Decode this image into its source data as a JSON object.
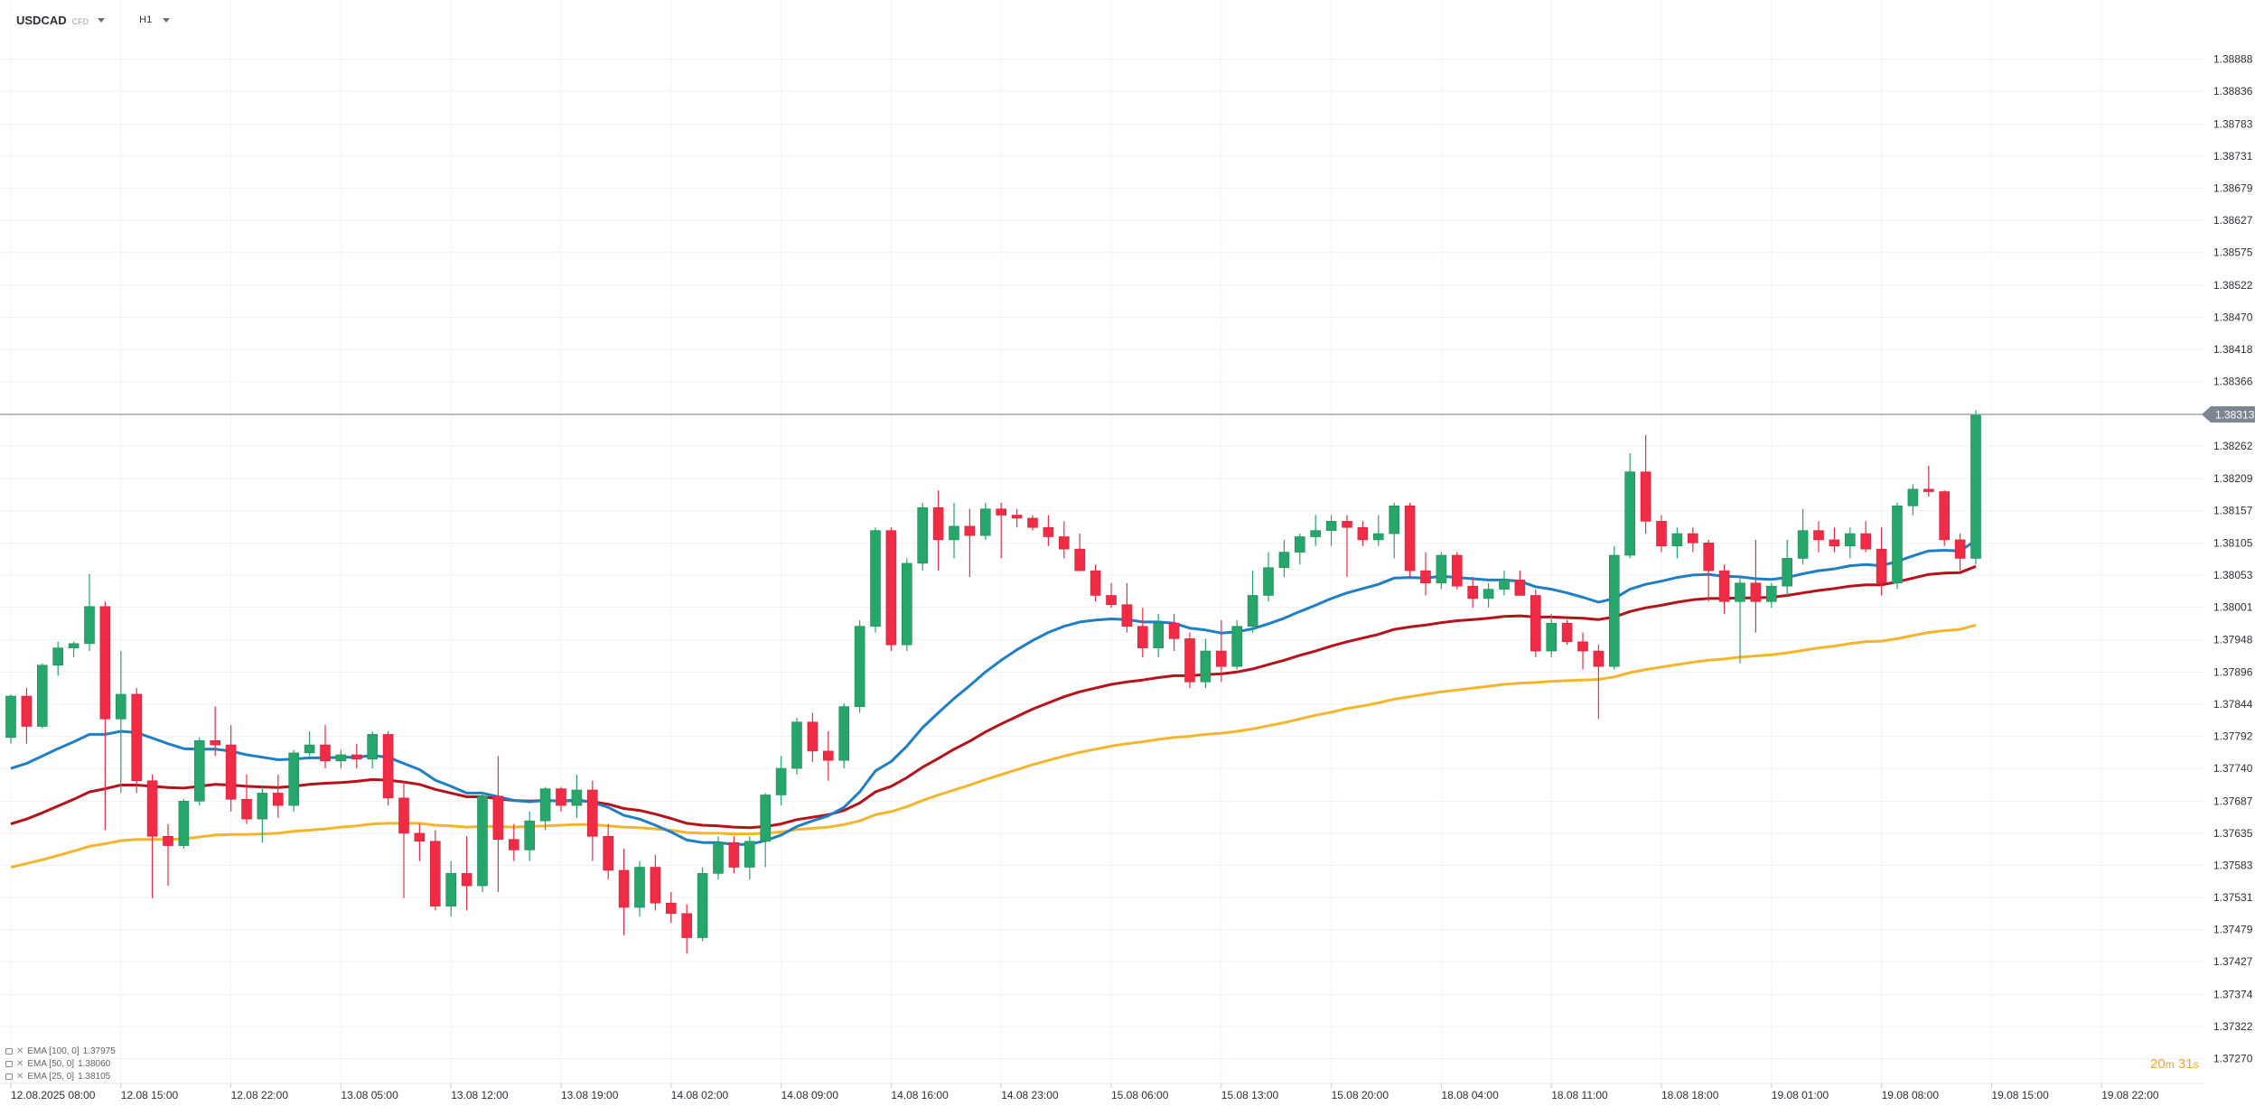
{
  "header": {
    "symbol": "USDCAD",
    "symbol_type": "CFD",
    "timeframe": "H1"
  },
  "legend": [
    {
      "label": "EMA [100, 0]",
      "value": "1.37975",
      "color": "#f5b52b"
    },
    {
      "label": "EMA [50, 0]",
      "value": "1.38060",
      "color": "#b5121b"
    },
    {
      "label": "EMA [25, 0]",
      "value": "1.38105",
      "color": "#1f7fc4"
    }
  ],
  "countdown": {
    "minutes": "20",
    "m_unit": "m",
    "seconds": "31",
    "s_unit": "s"
  },
  "price_tag": "1.38313",
  "chart_data": {
    "type": "candlestick",
    "ylim": [
      1.3723,
      1.3894
    ],
    "y_ticks": [
      "1.38888",
      "1.38836",
      "1.38783",
      "1.38731",
      "1.38679",
      "1.38627",
      "1.38575",
      "1.38522",
      "1.38470",
      "1.38418",
      "1.38366",
      "1.38313",
      "1.38262",
      "1.38209",
      "1.38157",
      "1.38105",
      "1.38053",
      "1.38001",
      "1.37948",
      "1.37896",
      "1.37844",
      "1.37792",
      "1.37740",
      "1.37687",
      "1.37635",
      "1.37583",
      "1.37531",
      "1.37479",
      "1.37427",
      "1.37374",
      "1.37322",
      "1.37270"
    ],
    "x_ticks": [
      "12.08.2025  08:00",
      "12.08  15:00",
      "12.08  22:00",
      "13.08  05:00",
      "13.08  12:00",
      "13.08  19:00",
      "14.08  02:00",
      "14.08  09:00",
      "14.08  16:00",
      "14.08  23:00",
      "15.08  06:00",
      "15.08  13:00",
      "15.08  20:00",
      "18.08  04:00",
      "18.08  11:00",
      "18.08  18:00",
      "19.08  01:00",
      "19.08  08:00",
      "19.08  15:00",
      "19.08  22:00"
    ],
    "last_price": 1.38313,
    "colors": {
      "up": "#26a66b",
      "down": "#ef2b45",
      "ema100": "#f5b52b",
      "ema50": "#b5121b",
      "ema25": "#1f7fc4"
    },
    "candles": [
      [
        1.3779,
        1.3786,
        1.3778,
        1.37857
      ],
      [
        1.37857,
        1.3787,
        1.3778,
        1.37808
      ],
      [
        1.37808,
        1.3791,
        1.37805,
        1.37907
      ],
      [
        1.37907,
        1.37945,
        1.3789,
        1.37935
      ],
      [
        1.37935,
        1.37945,
        1.3792,
        1.37942
      ],
      [
        1.37942,
        1.38055,
        1.3793,
        1.38002
      ],
      [
        1.38002,
        1.3801,
        1.3764,
        1.3782
      ],
      [
        1.3782,
        1.3793,
        1.377,
        1.3786
      ],
      [
        1.3786,
        1.3787,
        1.377,
        1.3772
      ],
      [
        1.3772,
        1.3773,
        1.3753,
        1.3763
      ],
      [
        1.3763,
        1.3765,
        1.3755,
        1.37615
      ],
      [
        1.37615,
        1.3769,
        1.3761,
        1.37687
      ],
      [
        1.37687,
        1.3779,
        1.3768,
        1.37785
      ],
      [
        1.37785,
        1.3784,
        1.3776,
        1.37778
      ],
      [
        1.37778,
        1.3781,
        1.3767,
        1.3769
      ],
      [
        1.3769,
        1.3773,
        1.3765,
        1.37658
      ],
      [
        1.37658,
        1.3771,
        1.3762,
        1.377
      ],
      [
        1.377,
        1.3773,
        1.3766,
        1.3768
      ],
      [
        1.3768,
        1.3777,
        1.3767,
        1.37765
      ],
      [
        1.37765,
        1.378,
        1.3776,
        1.37778
      ],
      [
        1.37778,
        1.3781,
        1.3774,
        1.37752
      ],
      [
        1.37752,
        1.3777,
        1.3774,
        1.37762
      ],
      [
        1.37762,
        1.3778,
        1.3774,
        1.37755
      ],
      [
        1.37755,
        1.378,
        1.3774,
        1.37795
      ],
      [
        1.37795,
        1.378,
        1.3768,
        1.37692
      ],
      [
        1.37692,
        1.3772,
        1.3753,
        1.37635
      ],
      [
        1.37635,
        1.3765,
        1.3759,
        1.37622
      ],
      [
        1.37622,
        1.3764,
        1.3751,
        1.37517
      ],
      [
        1.37517,
        1.3759,
        1.375,
        1.3757
      ],
      [
        1.3757,
        1.3763,
        1.3751,
        1.3755
      ],
      [
        1.3755,
        1.377,
        1.3754,
        1.37695
      ],
      [
        1.37695,
        1.3776,
        1.3754,
        1.37625
      ],
      [
        1.37625,
        1.3765,
        1.3759,
        1.37608
      ],
      [
        1.37608,
        1.3767,
        1.3759,
        1.37655
      ],
      [
        1.37655,
        1.3771,
        1.3764,
        1.37707
      ],
      [
        1.37707,
        1.3771,
        1.3767,
        1.3768
      ],
      [
        1.3768,
        1.3773,
        1.3766,
        1.37705
      ],
      [
        1.37705,
        1.3772,
        1.3759,
        1.3763
      ],
      [
        1.3763,
        1.3765,
        1.3756,
        1.37575
      ],
      [
        1.37575,
        1.3761,
        1.3747,
        1.37515
      ],
      [
        1.37515,
        1.3759,
        1.375,
        1.3758
      ],
      [
        1.3758,
        1.376,
        1.3751,
        1.37522
      ],
      [
        1.37522,
        1.3754,
        1.3749,
        1.37505
      ],
      [
        1.37505,
        1.3752,
        1.3744,
        1.37466
      ],
      [
        1.37466,
        1.3758,
        1.3746,
        1.3757
      ],
      [
        1.3757,
        1.3763,
        1.3756,
        1.3762
      ],
      [
        1.3762,
        1.3763,
        1.3757,
        1.3758
      ],
      [
        1.3758,
        1.3763,
        1.3756,
        1.37622
      ],
      [
        1.37622,
        1.377,
        1.3758,
        1.37697
      ],
      [
        1.37697,
        1.3776,
        1.3768,
        1.3774
      ],
      [
        1.3774,
        1.37822,
        1.3773,
        1.37815
      ],
      [
        1.37815,
        1.3783,
        1.3775,
        1.37768
      ],
      [
        1.37768,
        1.378,
        1.3772,
        1.37753
      ],
      [
        1.37753,
        1.37845,
        1.3774,
        1.3784
      ],
      [
        1.3784,
        1.3798,
        1.3783,
        1.3797
      ],
      [
        1.3797,
        1.3813,
        1.3796,
        1.38125
      ],
      [
        1.38125,
        1.3813,
        1.3793,
        1.3794
      ],
      [
        1.3794,
        1.3808,
        1.3793,
        1.38072
      ],
      [
        1.38072,
        1.3817,
        1.3806,
        1.38162
      ],
      [
        1.38162,
        1.3819,
        1.3806,
        1.3811
      ],
      [
        1.3811,
        1.3817,
        1.3808,
        1.38132
      ],
      [
        1.38132,
        1.3816,
        1.3805,
        1.38117
      ],
      [
        1.38117,
        1.3817,
        1.3811,
        1.3816
      ],
      [
        1.3816,
        1.3817,
        1.3808,
        1.3815
      ],
      [
        1.3815,
        1.3816,
        1.3813,
        1.38145
      ],
      [
        1.38145,
        1.3815,
        1.38125,
        1.3813
      ],
      [
        1.3813,
        1.3815,
        1.381,
        1.38115
      ],
      [
        1.38115,
        1.3814,
        1.3808,
        1.38095
      ],
      [
        1.38095,
        1.3812,
        1.3806,
        1.3806
      ],
      [
        1.3806,
        1.3807,
        1.3801,
        1.3802
      ],
      [
        1.3802,
        1.3804,
        1.38,
        1.38005
      ],
      [
        1.38005,
        1.3804,
        1.3796,
        1.3797
      ],
      [
        1.3797,
        1.38,
        1.3792,
        1.37935
      ],
      [
        1.37935,
        1.3799,
        1.3792,
        1.37975
      ],
      [
        1.37975,
        1.3799,
        1.3793,
        1.3795
      ],
      [
        1.3795,
        1.3796,
        1.3787,
        1.3788
      ],
      [
        1.3788,
        1.3795,
        1.3787,
        1.3793
      ],
      [
        1.3793,
        1.3798,
        1.3788,
        1.37905
      ],
      [
        1.37905,
        1.3798,
        1.379,
        1.3797
      ],
      [
        1.3797,
        1.3806,
        1.3796,
        1.3802
      ],
      [
        1.3802,
        1.3809,
        1.3801,
        1.38065
      ],
      [
        1.38065,
        1.3811,
        1.3805,
        1.3809
      ],
      [
        1.3809,
        1.3812,
        1.3807,
        1.38115
      ],
      [
        1.38115,
        1.3815,
        1.381,
        1.38125
      ],
      [
        1.38125,
        1.3815,
        1.381,
        1.3814
      ],
      [
        1.3814,
        1.3815,
        1.3805,
        1.3813
      ],
      [
        1.3813,
        1.3814,
        1.381,
        1.3811
      ],
      [
        1.3811,
        1.3815,
        1.381,
        1.3812
      ],
      [
        1.3812,
        1.3817,
        1.3808,
        1.38165
      ],
      [
        1.38165,
        1.3817,
        1.3805,
        1.3806
      ],
      [
        1.3806,
        1.3809,
        1.3802,
        1.3804
      ],
      [
        1.3804,
        1.3809,
        1.3803,
        1.38085
      ],
      [
        1.38085,
        1.3809,
        1.3803,
        1.38035
      ],
      [
        1.38035,
        1.3805,
        1.38,
        1.38015
      ],
      [
        1.38015,
        1.3804,
        1.38,
        1.3803
      ],
      [
        1.3803,
        1.3806,
        1.3802,
        1.38045
      ],
      [
        1.38045,
        1.3806,
        1.3802,
        1.3802
      ],
      [
        1.3802,
        1.3803,
        1.3792,
        1.3793
      ],
      [
        1.3793,
        1.3799,
        1.3792,
        1.37975
      ],
      [
        1.37975,
        1.3798,
        1.3794,
        1.37945
      ],
      [
        1.37945,
        1.3796,
        1.379,
        1.3793
      ],
      [
        1.3793,
        1.3794,
        1.3782,
        1.37905
      ],
      [
        1.37905,
        1.381,
        1.379,
        1.38085
      ],
      [
        1.38085,
        1.3825,
        1.3808,
        1.3822
      ],
      [
        1.3822,
        1.3828,
        1.3812,
        1.3814
      ],
      [
        1.3814,
        1.3815,
        1.3809,
        1.381
      ],
      [
        1.381,
        1.3813,
        1.3808,
        1.3812
      ],
      [
        1.3812,
        1.3813,
        1.3809,
        1.38105
      ],
      [
        1.38105,
        1.3811,
        1.3801,
        1.3806
      ],
      [
        1.3806,
        1.3807,
        1.3799,
        1.3801
      ],
      [
        1.3801,
        1.3805,
        1.3791,
        1.3804
      ],
      [
        1.3804,
        1.3811,
        1.3796,
        1.3801
      ],
      [
        1.3801,
        1.3804,
        1.38,
        1.38035
      ],
      [
        1.38035,
        1.3811,
        1.3802,
        1.3808
      ],
      [
        1.3808,
        1.3816,
        1.3807,
        1.38125
      ],
      [
        1.38125,
        1.3814,
        1.3809,
        1.3811
      ],
      [
        1.3811,
        1.3813,
        1.3809,
        1.381
      ],
      [
        1.381,
        1.3813,
        1.3808,
        1.3812
      ],
      [
        1.3812,
        1.3814,
        1.3809,
        1.38095
      ],
      [
        1.38095,
        1.3813,
        1.3802,
        1.3804
      ],
      [
        1.3804,
        1.3817,
        1.3803,
        1.38165
      ],
      [
        1.38165,
        1.382,
        1.3815,
        1.38192
      ],
      [
        1.38192,
        1.3823,
        1.3818,
        1.38188
      ],
      [
        1.38188,
        1.3819,
        1.381,
        1.3811
      ],
      [
        1.3811,
        1.3812,
        1.3806,
        1.3808
      ],
      [
        1.3808,
        1.3832,
        1.3807,
        1.38313
      ]
    ],
    "ema25": [
      1.3774,
      1.37748,
      1.3776,
      1.37772,
      1.37783,
      1.37795,
      1.37795,
      1.378,
      1.37798,
      1.37789,
      1.3778,
      1.37772,
      1.37771,
      1.37771,
      1.37768,
      1.37762,
      1.37758,
      1.37754,
      1.37755,
      1.37757,
      1.37757,
      1.37758,
      1.37758,
      1.37761,
      1.37758,
      1.37748,
      1.37738,
      1.37721,
      1.37711,
      1.377,
      1.377,
      1.37694,
      1.37688,
      1.37686,
      1.37688,
      1.37687,
      1.37689,
      1.37685,
      1.37677,
      1.37664,
      1.37658,
      1.37648,
      1.37637,
      1.37624,
      1.3762,
      1.3762,
      1.37617,
      1.37617,
      1.37623,
      1.37632,
      1.37646,
      1.37655,
      1.37663,
      1.37677,
      1.37702,
      1.37736,
      1.37751,
      1.37776,
      1.37806,
      1.3783,
      1.37853,
      1.37874,
      1.37896,
      1.37915,
      1.37932,
      1.37947,
      1.3796,
      1.3797,
      1.37977,
      1.3798,
      1.37982,
      1.37981,
      1.37977,
      1.37977,
      1.37975,
      1.37967,
      1.37964,
      1.37959,
      1.37961,
      1.37966,
      1.37974,
      1.37983,
      1.37994,
      1.38004,
      1.38015,
      1.38024,
      1.38031,
      1.38038,
      1.38048,
      1.38049,
      1.38048,
      1.38051,
      1.38049,
      1.38047,
      1.38045,
      1.38045,
      1.38043,
      1.38034,
      1.3803,
      1.38024,
      1.38017,
      1.38009,
      1.38015,
      1.3803,
      1.38038,
      1.38043,
      1.38049,
      1.38053,
      1.38054,
      1.38051,
      1.3805,
      1.38047,
      1.38046,
      1.38049,
      1.38055,
      1.3806,
      1.38063,
      1.38068,
      1.3807,
      1.38068,
      1.38075,
      1.38084,
      1.38092,
      1.38093,
      1.38092,
      1.38109
    ],
    "ema50": [
      1.3765,
      1.37658,
      1.37668,
      1.37679,
      1.3769,
      1.37702,
      1.37707,
      1.37713,
      1.37713,
      1.37711,
      1.37709,
      1.37708,
      1.37711,
      1.37714,
      1.37713,
      1.37711,
      1.3771,
      1.37709,
      1.37711,
      1.37714,
      1.37716,
      1.37717,
      1.37719,
      1.37722,
      1.37721,
      1.37718,
      1.37714,
      1.37706,
      1.377,
      1.37694,
      1.37694,
      1.37691,
      1.37688,
      1.37687,
      1.37688,
      1.37687,
      1.37688,
      1.37686,
      1.37682,
      1.37675,
      1.37672,
      1.37666,
      1.37659,
      1.37651,
      1.37648,
      1.37647,
      1.37645,
      1.37644,
      1.37646,
      1.3765,
      1.37657,
      1.37661,
      1.37665,
      1.37672,
      1.37684,
      1.37702,
      1.37711,
      1.37725,
      1.37742,
      1.37756,
      1.37771,
      1.37784,
      1.37799,
      1.37812,
      1.37824,
      1.37836,
      1.37846,
      1.37856,
      1.37864,
      1.3787,
      1.37876,
      1.3788,
      1.37883,
      1.37887,
      1.3789,
      1.3789,
      1.37892,
      1.37893,
      1.37896,
      1.37901,
      1.37908,
      1.37915,
      1.37923,
      1.3793,
      1.37938,
      1.37945,
      1.37951,
      1.37957,
      1.37965,
      1.37969,
      1.37972,
      1.37976,
      1.37979,
      1.37981,
      1.37983,
      1.37986,
      1.37987,
      1.37985,
      1.37985,
      1.37984,
      1.37983,
      1.37981,
      1.37985,
      1.37994,
      1.38,
      1.38004,
      1.38009,
      1.38013,
      1.38015,
      1.38015,
      1.38016,
      1.38016,
      1.38017,
      1.3802,
      1.38024,
      1.38028,
      1.38031,
      1.38035,
      1.38037,
      1.38037,
      1.38042,
      1.38048,
      1.38054,
      1.38056,
      1.38057,
      1.38067
    ],
    "ema100": [
      1.3758,
      1.37586,
      1.37592,
      1.37599,
      1.37606,
      1.37614,
      1.37618,
      1.37623,
      1.37625,
      1.37625,
      1.37625,
      1.37626,
      1.37629,
      1.37632,
      1.37633,
      1.37633,
      1.37634,
      1.37635,
      1.37638,
      1.3764,
      1.37642,
      1.37645,
      1.37647,
      1.3765,
      1.37651,
      1.37651,
      1.37651,
      1.37648,
      1.37647,
      1.37645,
      1.37646,
      1.37646,
      1.37645,
      1.37646,
      1.37647,
      1.37648,
      1.37649,
      1.37649,
      1.37647,
      1.37645,
      1.37644,
      1.37642,
      1.3764,
      1.37636,
      1.37635,
      1.37635,
      1.37634,
      1.37634,
      1.37635,
      1.37637,
      1.37641,
      1.37643,
      1.37645,
      1.37649,
      1.37655,
      1.37665,
      1.3767,
      1.37678,
      1.37688,
      1.37697,
      1.37705,
      1.37713,
      1.37722,
      1.3773,
      1.37738,
      1.37746,
      1.37753,
      1.3776,
      1.37766,
      1.37771,
      1.37776,
      1.3778,
      1.37783,
      1.37787,
      1.3779,
      1.37792,
      1.37795,
      1.37797,
      1.378,
      1.37804,
      1.37809,
      1.37814,
      1.3782,
      1.37826,
      1.37831,
      1.37837,
      1.37841,
      1.37846,
      1.37852,
      1.37856,
      1.3786,
      1.37864,
      1.37867,
      1.3787,
      1.37873,
      1.37876,
      1.37878,
      1.37879,
      1.37881,
      1.37882,
      1.37883,
      1.37884,
      1.37888,
      1.37895,
      1.379,
      1.37904,
      1.37908,
      1.37912,
      1.37915,
      1.37917,
      1.3792,
      1.37922,
      1.37924,
      1.37927,
      1.37931,
      1.37935,
      1.37938,
      1.37942,
      1.37945,
      1.37946,
      1.3795,
      1.37955,
      1.3796,
      1.37963,
      1.37965,
      1.37972
    ]
  }
}
